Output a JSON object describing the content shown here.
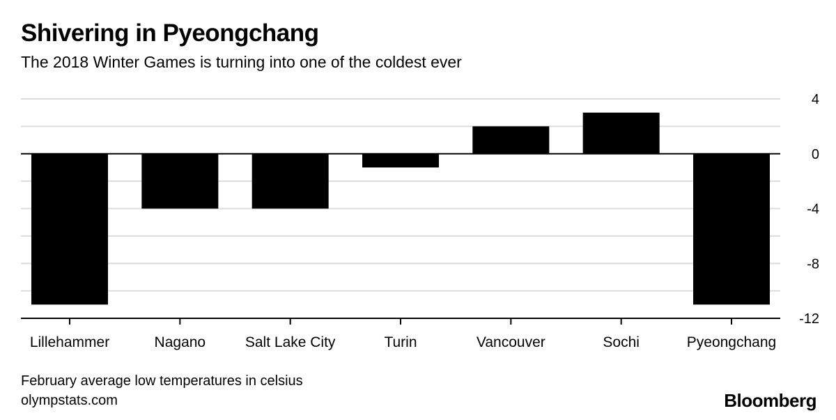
{
  "title": "Shivering in Pyeongchang",
  "subtitle": "The 2018 Winter Games is turning into one of the coldest ever",
  "footer": {
    "note": "February average low temperatures in celsius",
    "source": "olympstats.com",
    "brand": "Bloomberg"
  },
  "colors": {
    "bar": "#000000",
    "grid": "#dcdcdc",
    "zero_line": "#000000",
    "background": "#ffffff"
  },
  "chart_data": {
    "type": "bar",
    "title": "Shivering in Pyeongchang",
    "subtitle": "The 2018 Winter Games is turning into one of the coldest ever",
    "categories": [
      "Lillehammer",
      "Nagano",
      "Salt Lake City",
      "Turin",
      "Vancouver",
      "Sochi",
      "Pyeongchang"
    ],
    "values": [
      -11,
      -4,
      -4,
      -1,
      2,
      3,
      -11
    ],
    "ylim": [
      -12,
      4
    ],
    "yticks": [
      4,
      0,
      -4,
      -8,
      -12
    ],
    "grid": true,
    "y_axis_side": "right",
    "xlabel": "",
    "ylabel": ""
  }
}
